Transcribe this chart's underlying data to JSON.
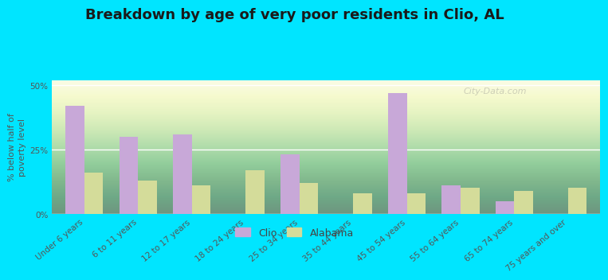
{
  "title": "Breakdown by age of very poor residents in Clio, AL",
  "ylabel": "% below half of\npoverty level",
  "categories": [
    "Under 6 years",
    "6 to 11 years",
    "12 to 17 years",
    "18 to 24 years",
    "25 to 34 years",
    "35 to 44 years",
    "45 to 54 years",
    "55 to 64 years",
    "65 to 74 years",
    "75 years and over"
  ],
  "clio_values": [
    42,
    30,
    31,
    0,
    23,
    0,
    47,
    11,
    5,
    0
  ],
  "alabama_values": [
    16,
    13,
    11,
    17,
    12,
    8,
    8,
    10,
    9,
    10
  ],
  "clio_color": "#c8a8d8",
  "alabama_color": "#d4dc9a",
  "bar_width": 0.35,
  "ylim": [
    0,
    52
  ],
  "yticks": [
    0,
    25,
    50
  ],
  "ytick_labels": [
    "0%",
    "25%",
    "50%"
  ],
  "bg_top_color": "#f5f8e8",
  "bg_bottom_color": "#d8ecc0",
  "outer_background": "#00e5ff",
  "title_fontsize": 13,
  "axis_label_fontsize": 8,
  "tick_fontsize": 7.5,
  "legend_labels": [
    "Clio",
    "Alabama"
  ],
  "watermark": "City-Data.com"
}
